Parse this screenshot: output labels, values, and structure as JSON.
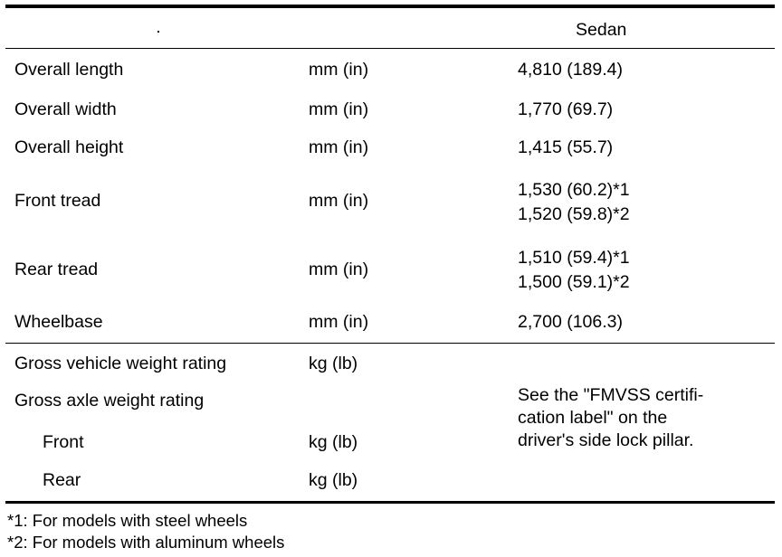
{
  "header": {
    "column_label": "Sedan"
  },
  "dimensions": [
    {
      "label": "Overall length",
      "unit": "mm (in)",
      "values": [
        "4,810 (189.4)"
      ]
    },
    {
      "label": "Overall width",
      "unit": "mm (in)",
      "values": [
        "1,770 (69.7)"
      ]
    },
    {
      "label": "Overall height",
      "unit": "mm (in)",
      "values": [
        "1,415 (55.7)"
      ]
    },
    {
      "label": "Front tread",
      "unit": "mm (in)",
      "values": [
        "1,530 (60.2)*1",
        "1,520 (59.8)*2"
      ]
    },
    {
      "label": "Rear tread",
      "unit": "mm (in)",
      "values": [
        "1,510 (59.4)*1",
        "1,500 (59.1)*2"
      ]
    },
    {
      "label": "Wheelbase",
      "unit": "mm (in)",
      "values": [
        "2,700 (106.3)"
      ]
    }
  ],
  "weights": {
    "gvwr": {
      "label": "Gross vehicle weight rating",
      "unit": "kg (lb)"
    },
    "gawr": {
      "label": "Gross axle weight rating"
    },
    "front": {
      "label": "Front",
      "unit": "kg (lb)"
    },
    "rear": {
      "label": "Rear",
      "unit": "kg (lb)"
    },
    "note_lines": [
      "See the \"FMVSS certifi-",
      "cation label\" on the",
      "driver's side lock pillar."
    ]
  },
  "footnotes": [
    "*1: For models with steel wheels",
    "*2: For models with aluminum wheels"
  ]
}
